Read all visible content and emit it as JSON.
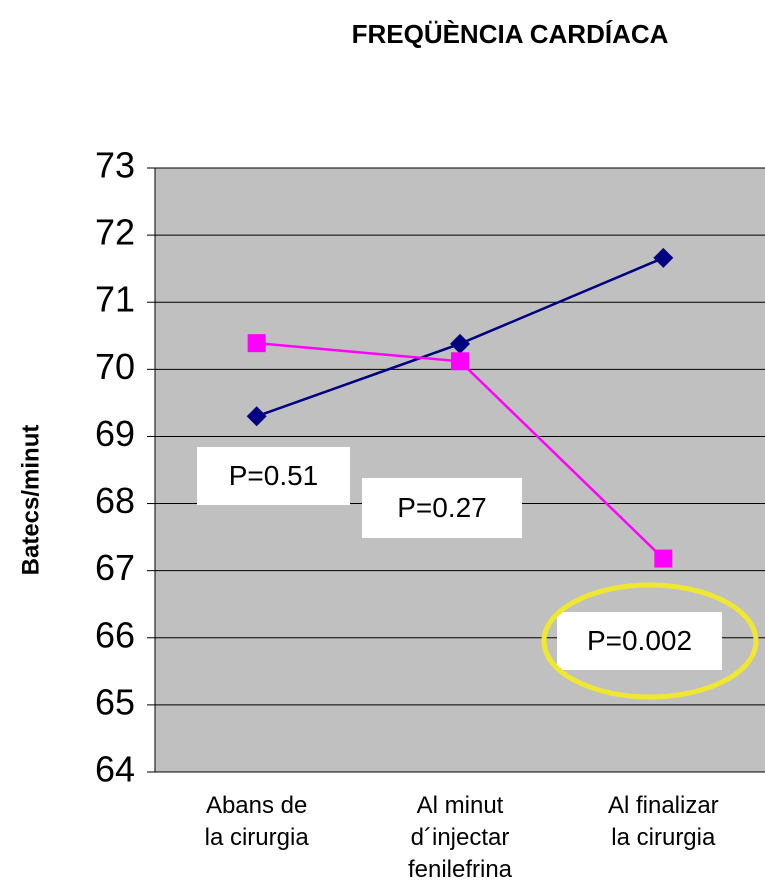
{
  "chart_data": {
    "type": "line",
    "title": "FREQÜÈNCIA CARDÍACA",
    "y_label": "Batecs/minut",
    "categories": [
      "Abans de\nla cirurgia",
      "Al minut\nd´injectar\nfenilefrina",
      "Al finalizar\nla cirurgia"
    ],
    "series": [
      {
        "color": "#000080",
        "marker": "diamond",
        "values": [
          69.3,
          70.38,
          71.66
        ]
      },
      {
        "color": "#ff00ff",
        "marker": "square",
        "values": [
          70.39,
          70.12,
          67.18
        ]
      }
    ],
    "ylim": [
      64,
      73
    ],
    "yticks": [
      64,
      65,
      66,
      67,
      68,
      69,
      70,
      71,
      72,
      73
    ],
    "grid": true,
    "annotations": [
      "P=0.51",
      "P=0.27",
      "P=0.002"
    ]
  }
}
